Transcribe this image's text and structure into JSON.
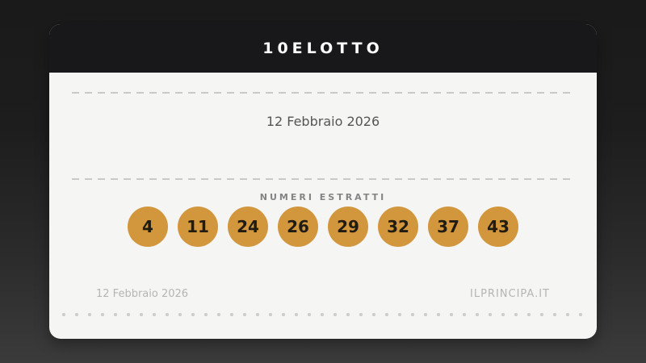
{
  "card": {
    "title": "10ELOTTO",
    "draw_date": "12 Febbraio 2026",
    "numbers_label": "NUMERI ESTRATTI",
    "numbers": [
      "4",
      "11",
      "24",
      "26",
      "29",
      "32",
      "37",
      "43"
    ],
    "footer": {
      "date": "12 Febbraio 2026",
      "site": "ILPRINCIPA.IT"
    },
    "colors": {
      "header_bg": "#18181a",
      "body_bg": "#f5f5f4",
      "ball": "#d2963c",
      "ball_text": "#211c12",
      "divider": "#c9c9c9",
      "date_text": "#555555",
      "label_text": "#848484",
      "footer_text": "#b5b5b5",
      "page_bg_top": "#1a1a1a",
      "page_bg_bottom": "#3b3b3b"
    }
  }
}
